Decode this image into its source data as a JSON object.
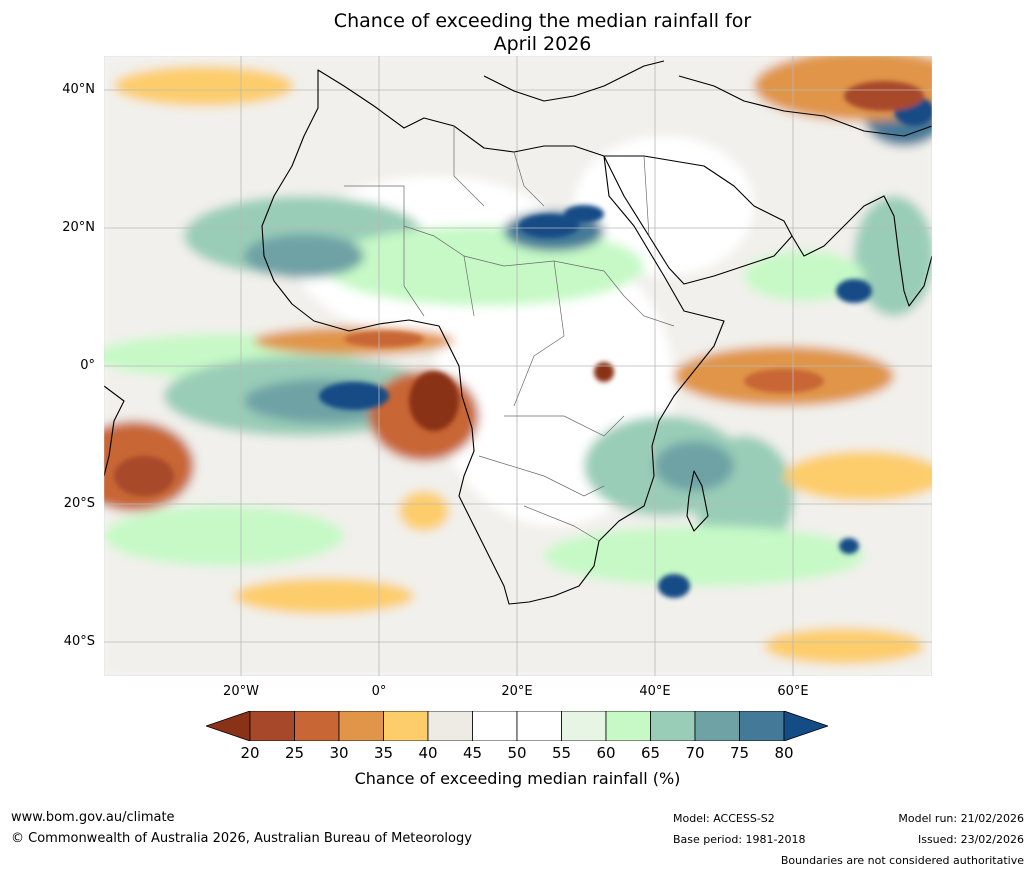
{
  "title": {
    "line1": "Chance of exceeding the median rainfall for",
    "line2": "April 2026"
  },
  "map": {
    "lat_labels": [
      "40°N",
      "20°N",
      "0°",
      "20°S",
      "40°S"
    ],
    "lon_labels": [
      "20°W",
      "0°",
      "20°E",
      "40°E",
      "60°E"
    ]
  },
  "colorbar": {
    "colors": [
      "#8a3218",
      "#a8482a",
      "#c86636",
      "#e09548",
      "#fdcd6c",
      "#eeebe5",
      "#ffffff",
      "#ffffff",
      "#e6f5e4",
      "#c6f9c6",
      "#99cdb7",
      "#6ea2a5",
      "#447998",
      "#144c86"
    ],
    "ticks": [
      "20",
      "25",
      "30",
      "35",
      "40",
      "45",
      "50",
      "55",
      "60",
      "65",
      "70",
      "75",
      "80"
    ],
    "label": "Chance of exceeding median rainfall (%)"
  },
  "footer": {
    "website": "www.bom.gov.au/climate",
    "copyright": "© Commonwealth of Australia 2026, Australian Bureau of Meteorology",
    "model": "Model: ACCESS-S2",
    "base_period": "Base period: 1981-2018",
    "model_run": "Model run: 21/02/2026",
    "issued": "Issued: 23/02/2026",
    "disclaimer": "Boundaries are not considered authoritative"
  }
}
